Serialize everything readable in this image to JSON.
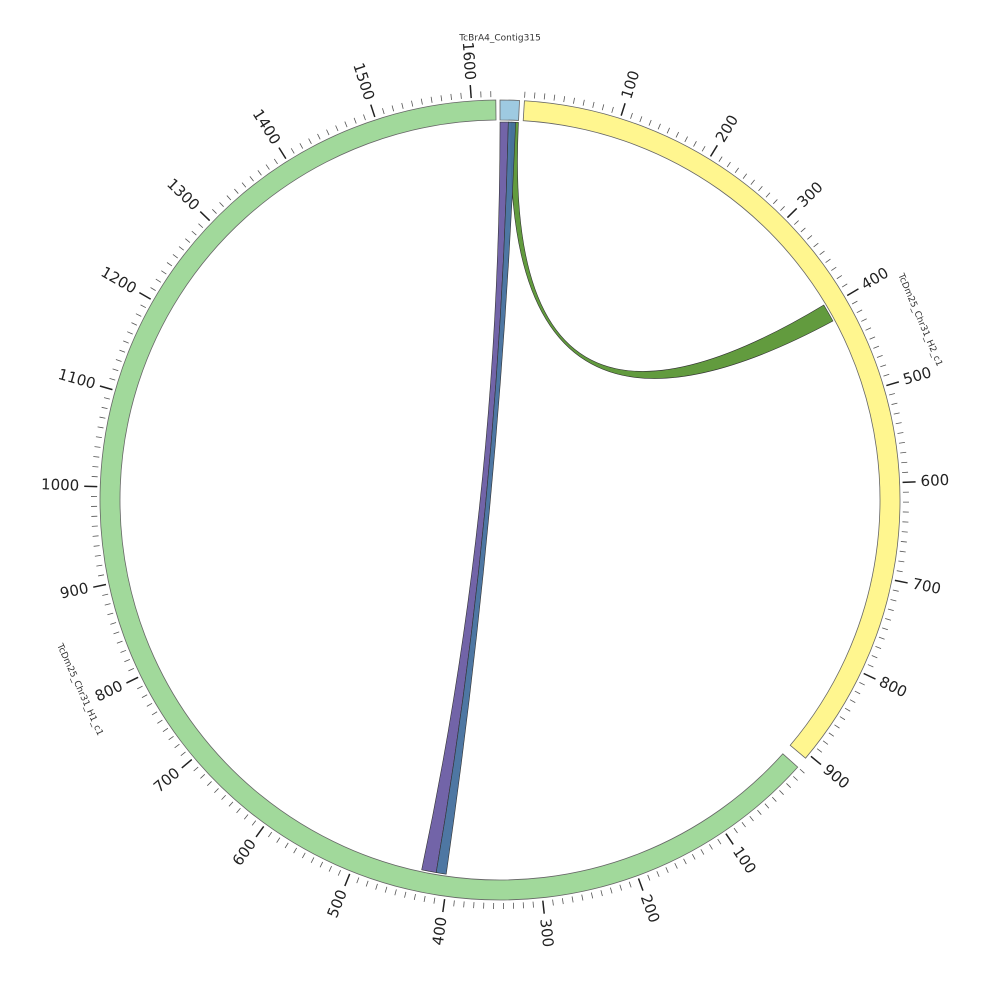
{
  "chart_data": {
    "type": "chord",
    "segments": [
      {
        "name": "TcBrA4_Contig315",
        "color": "#9ecae1",
        "length": 20,
        "ticks": [],
        "minor_tick_step": null
      },
      {
        "name": "TcDm25_Chr31_H2_c1",
        "color": "#fff68f",
        "length": 905,
        "ticks": [
          100,
          200,
          300,
          400,
          500,
          600,
          700,
          800,
          900
        ],
        "minor_tick_step": 10
      },
      {
        "name": "TcDm25_Chr31_H1_c1",
        "color": "#a1d99b",
        "length": 1625,
        "ticks": [
          100,
          200,
          300,
          400,
          500,
          600,
          700,
          800,
          900,
          1000,
          1100,
          1200,
          1300,
          1400,
          1500,
          1600
        ],
        "minor_tick_step": 10
      }
    ],
    "links": [
      {
        "from": "TcBrA4_Contig315",
        "from_range": [
          12,
          20
        ],
        "to": "TcDm25_Chr31_H2_c1",
        "to_range": [
          396,
          416
        ],
        "color": "#5a9634"
      },
      {
        "from": "TcBrA4_Contig315",
        "from_range": [
          0,
          9
        ],
        "to": "TcDm25_Chr31_H1_c1",
        "to_range": [
          413,
          429
        ],
        "color": "#6a5ca3"
      },
      {
        "from": "TcBrA4_Contig315",
        "from_range": [
          9,
          17
        ],
        "to": "TcDm25_Chr31_H1_c1",
        "to_range": [
          402,
          413
        ],
        "color": "#44709e"
      }
    ]
  }
}
